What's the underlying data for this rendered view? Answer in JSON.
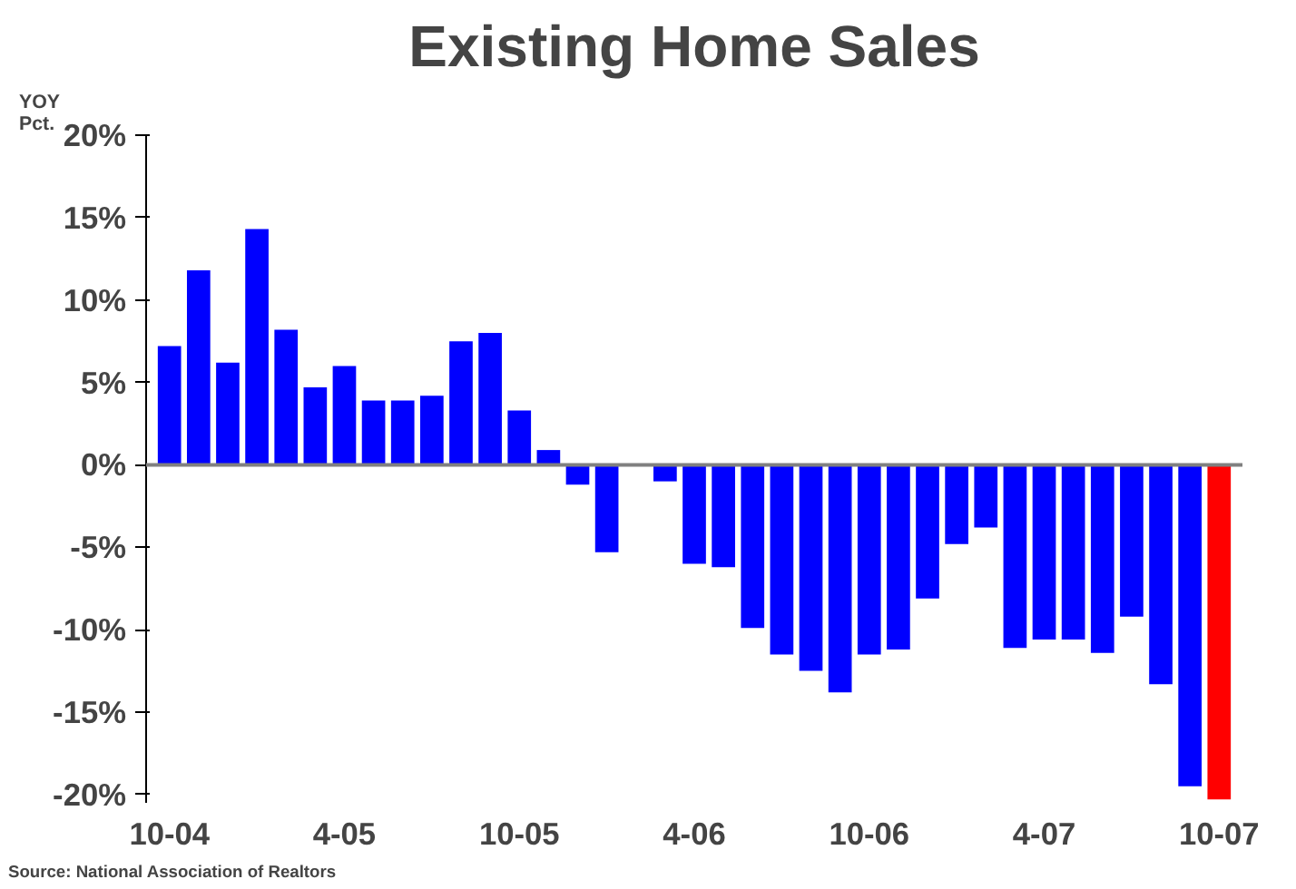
{
  "chart_data": {
    "type": "bar",
    "title": "Existing Home Sales",
    "ylabel": "YOY\nPct.",
    "categories": [
      "10-04",
      null,
      null,
      null,
      null,
      null,
      "4-05",
      null,
      null,
      null,
      null,
      null,
      "10-05",
      null,
      null,
      null,
      null,
      null,
      "4-06",
      null,
      null,
      null,
      null,
      null,
      "10-06",
      null,
      null,
      null,
      null,
      null,
      "4-07",
      null,
      null,
      null,
      null,
      null,
      "10-07"
    ],
    "values": [
      7.2,
      11.8,
      6.2,
      14.3,
      8.2,
      4.7,
      6.0,
      3.9,
      3.9,
      4.2,
      7.5,
      8.0,
      3.3,
      0.9,
      -1.2,
      -5.3,
      0,
      -1.0,
      -6.0,
      -6.2,
      -9.9,
      -11.5,
      -12.5,
      -13.8,
      -11.5,
      -11.2,
      -8.1,
      -4.8,
      -3.8,
      -11.1,
      -10.6,
      -10.6,
      -11.4,
      -9.2,
      -13.3,
      -19.5,
      -20.3
    ],
    "colors": [
      "#0000ff",
      "#0000ff",
      "#0000ff",
      "#0000ff",
      "#0000ff",
      "#0000ff",
      "#0000ff",
      "#0000ff",
      "#0000ff",
      "#0000ff",
      "#0000ff",
      "#0000ff",
      "#0000ff",
      "#0000ff",
      "#0000ff",
      "#0000ff",
      "#0000ff",
      "#0000ff",
      "#0000ff",
      "#0000ff",
      "#0000ff",
      "#0000ff",
      "#0000ff",
      "#0000ff",
      "#0000ff",
      "#0000ff",
      "#0000ff",
      "#0000ff",
      "#0000ff",
      "#0000ff",
      "#0000ff",
      "#0000ff",
      "#0000ff",
      "#0000ff",
      "#0000ff",
      "#0000ff",
      "#ff0000"
    ],
    "ylim": [
      -20.5,
      20
    ],
    "yticks": [
      {
        "value": -20,
        "label": "-20%"
      },
      {
        "value": -15,
        "label": "-15%"
      },
      {
        "value": -10,
        "label": "-10%"
      },
      {
        "value": -5,
        "label": "-5%"
      },
      {
        "value": 0,
        "label": "0%"
      },
      {
        "value": 5,
        "label": "5%"
      },
      {
        "value": 10,
        "label": "10%"
      },
      {
        "value": 15,
        "label": "15%"
      },
      {
        "value": 20,
        "label": "20%"
      }
    ],
    "ref_lines": [
      {
        "axis": "y",
        "value": 0,
        "color": "#808080"
      }
    ],
    "grid": false,
    "annotations": [
      "Source: National Association of Realtors"
    ]
  }
}
